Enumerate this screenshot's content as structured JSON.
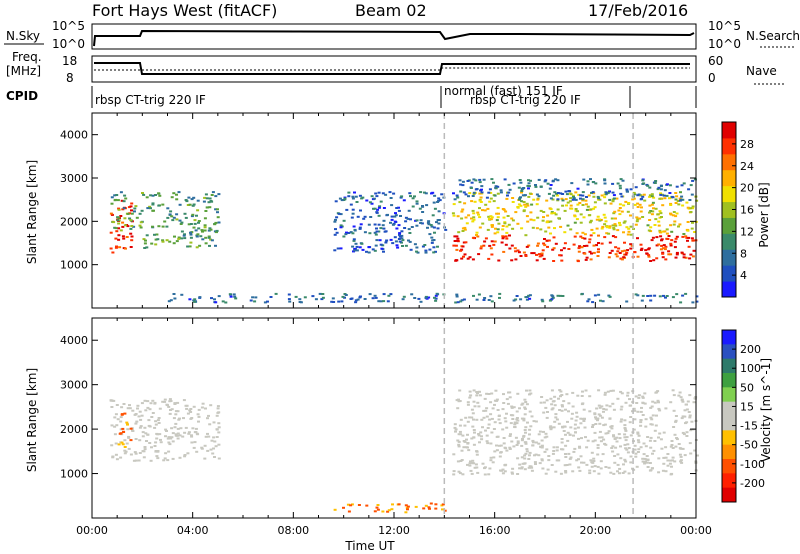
{
  "header": {
    "station": "Fort Hays West (fitACF)",
    "beam": "Beam 02",
    "date": "17/Feb/2016"
  },
  "panels": {
    "nsky_label": "N.Sky",
    "nsky_ticks": [
      "10^5",
      "10^0"
    ],
    "nsearch_label": "N.Search",
    "nsearch_ticks": [
      "10^5",
      "10^0"
    ],
    "freq_label_1": "Freq.",
    "freq_label_2": "[MHz]",
    "freq_ticks": [
      "18",
      "8"
    ],
    "nave_label": "Nave",
    "nave_ticks": [
      "60",
      "0"
    ],
    "cpid_label": "CPID",
    "cpid_segments": [
      "rbsp CT-trig 220 IF",
      "normal (fast) 151 IF",
      "rbsp CT-trig 220 IF"
    ]
  },
  "chart_data": [
    {
      "type": "heatmap",
      "name": "power",
      "xlabel": "",
      "ylabel": "Slant Range [km]",
      "ylim": [
        0,
        4500
      ],
      "yticks": [
        1000,
        2000,
        3000,
        4000
      ],
      "colorbar_label": "Power [dB]",
      "colorbar_ticks": [
        4,
        8,
        12,
        16,
        20,
        24,
        28
      ],
      "colorbar_range": [
        0,
        32
      ],
      "colors": [
        "#1a1aff",
        "#1f4fbf",
        "#2e6e9e",
        "#3a8a6a",
        "#5aa03a",
        "#a0c020",
        "#f0e000",
        "#ffb000",
        "#ff7000",
        "#ff3000",
        "#e00000"
      ],
      "regions": [
        {
          "t": [
            0.7,
            1.6
          ],
          "r": [
            1300,
            2500
          ],
          "level": 30
        },
        {
          "t": [
            0.7,
            2.0
          ],
          "r": [
            1800,
            2700
          ],
          "level": 12
        },
        {
          "t": [
            2.0,
            5.0
          ],
          "r": [
            1400,
            2700
          ],
          "level": 11
        },
        {
          "t": [
            14.3,
            24.0
          ],
          "r": [
            1100,
            1700
          ],
          "level": 30
        },
        {
          "t": [
            14.3,
            24.0
          ],
          "r": [
            1700,
            2700
          ],
          "level": 19
        },
        {
          "t": [
            14.3,
            24.0
          ],
          "r": [
            2500,
            3000
          ],
          "level": 6
        },
        {
          "t": [
            9.5,
            14.0
          ],
          "r": [
            1300,
            2700
          ],
          "level": 5
        },
        {
          "t": [
            3.0,
            24.0
          ],
          "r": [
            150,
            350
          ],
          "level": 6
        }
      ]
    },
    {
      "type": "heatmap",
      "name": "velocity",
      "xlabel": "Time UT",
      "ylabel": "Slant Range [km]",
      "ylim": [
        0,
        4500
      ],
      "yticks": [
        1000,
        2000,
        3000,
        4000
      ],
      "xticks": [
        "00:00",
        "04:00",
        "08:00",
        "12:00",
        "16:00",
        "20:00",
        "00:00"
      ],
      "xlim": [
        0,
        24
      ],
      "colorbar_label": "Velocity [m s^-1]",
      "colorbar_ticks": [
        200,
        100,
        50,
        15,
        -15,
        -50,
        -100,
        -200
      ],
      "colors": [
        "#1a1aff",
        "#2a50c0",
        "#2e7a6a",
        "#3ea040",
        "#80d050",
        "#c8c8c0",
        "#c8c8c0",
        "#ffc000",
        "#ff9000",
        "#ff5000",
        "#ff2000",
        "#e00000"
      ],
      "regions": [
        {
          "t": [
            0.7,
            5.0
          ],
          "r": [
            1300,
            2700
          ],
          "velocity": 0
        },
        {
          "t": [
            1.0,
            1.5
          ],
          "r": [
            1600,
            2400
          ],
          "velocity": -60
        },
        {
          "t": [
            14.3,
            24.0
          ],
          "r": [
            1000,
            2900
          ],
          "velocity": 0
        },
        {
          "t": [
            9.5,
            14.0
          ],
          "r": [
            150,
            350
          ],
          "velocity": -50
        }
      ]
    }
  ],
  "markers": {
    "dashed_times": [
      14.0,
      21.5
    ]
  }
}
